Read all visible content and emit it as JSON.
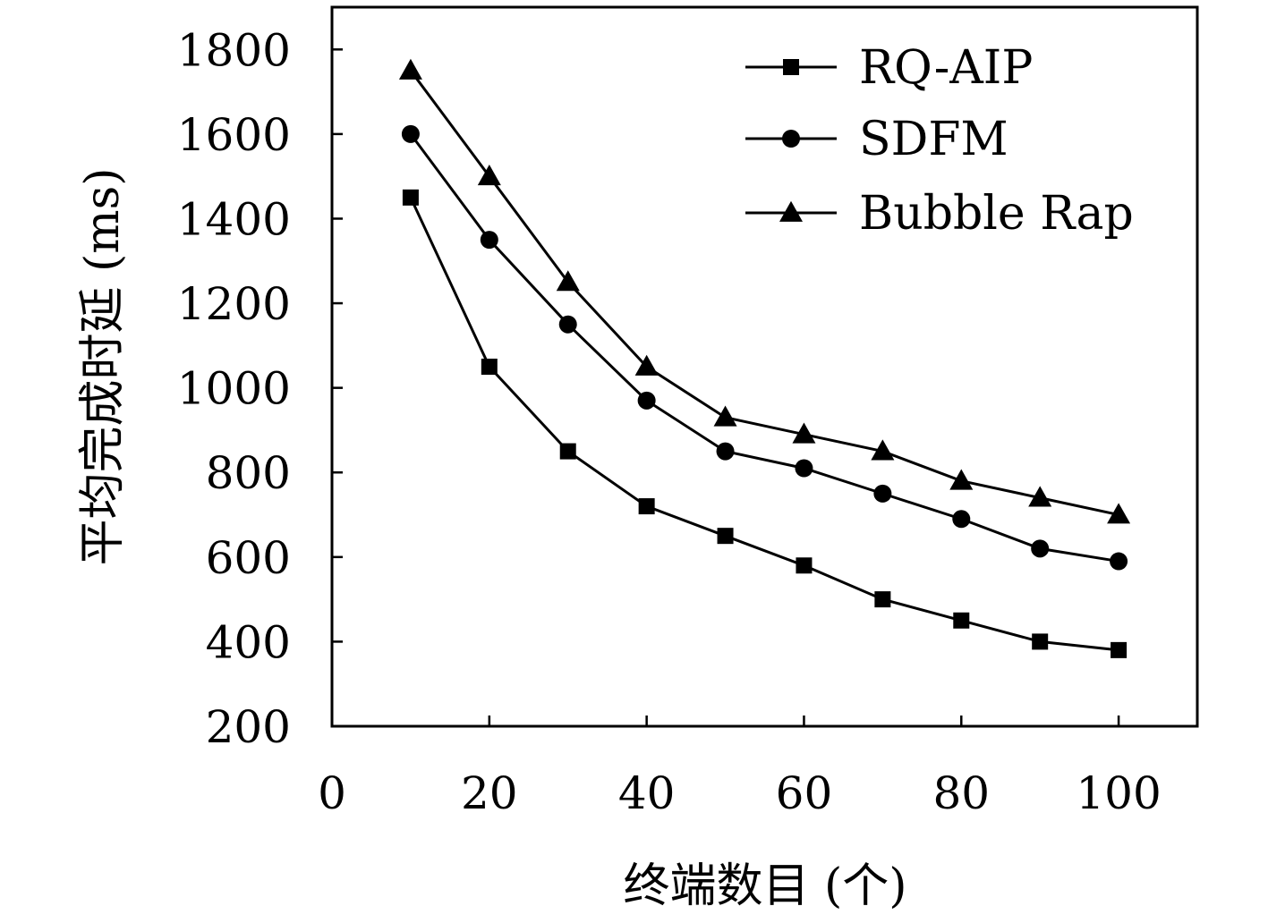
{
  "chart_data": {
    "type": "line",
    "title": "",
    "xlabel": "终端数目 (个)",
    "ylabel": "平均完成时延 (ms)",
    "xlim": [
      0,
      110
    ],
    "ylim": [
      200,
      1900
    ],
    "xticks": [
      0,
      20,
      40,
      60,
      80,
      100
    ],
    "yticks": [
      200,
      400,
      600,
      800,
      1000,
      1200,
      1400,
      1600,
      1800
    ],
    "grid": false,
    "legend_position": "top-right",
    "x": [
      10,
      20,
      30,
      40,
      50,
      60,
      70,
      80,
      90,
      100
    ],
    "series": [
      {
        "name": "RQ-AIP",
        "marker": "square",
        "values": [
          1450,
          1050,
          850,
          720,
          650,
          580,
          500,
          450,
          400,
          380
        ]
      },
      {
        "name": "SDFM",
        "marker": "circle",
        "values": [
          1600,
          1350,
          1150,
          970,
          850,
          810,
          750,
          690,
          620,
          590
        ]
      },
      {
        "name": "Bubble Rap",
        "marker": "triangle",
        "values": [
          1750,
          1500,
          1250,
          1050,
          930,
          890,
          850,
          780,
          740,
          700
        ]
      }
    ]
  }
}
